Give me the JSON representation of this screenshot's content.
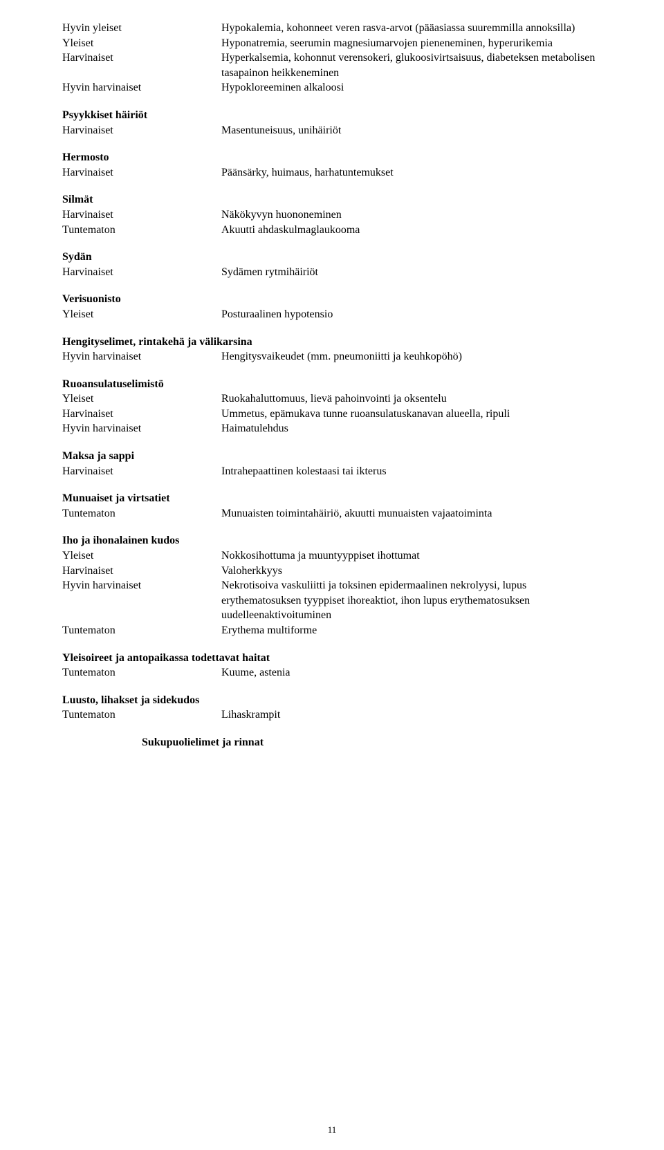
{
  "s1": {
    "r1a": "Hyvin yleiset",
    "r1b": "Hypokalemia, kohonneet veren rasva-arvot (pääasiassa suuremmilla annoksilla)",
    "r2a": "Yleiset",
    "r2b": "Hyponatremia, seerumin magnesiumarvojen pieneneminen, hyperurikemia",
    "r3a": "Harvinaiset",
    "r3b": "Hyperkalsemia, kohonnut verensokeri, glukoosivirtsaisuus, diabeteksen metabolisen tasapainon heikkeneminen",
    "r4a": "Hyvin harvinaiset",
    "r4b": "Hypokloreeminen alkaloosi"
  },
  "s2": {
    "title": "Psyykkiset häiriöt",
    "r1a": "Harvinaiset",
    "r1b": "Masentuneisuus, unihäiriöt"
  },
  "s3": {
    "title": "Hermosto",
    "r1a": "Harvinaiset",
    "r1b": "Päänsärky, huimaus, harhatuntemukset"
  },
  "s4": {
    "title": "Silmät",
    "r1a": "Harvinaiset",
    "r1b": "Näkökyvyn huononeminen",
    "r2a": "Tuntematon",
    "r2b": "Akuutti ahdaskulmaglaukooma"
  },
  "s5": {
    "title": "Sydän",
    "r1a": "Harvinaiset",
    "r1b": "Sydämen rytmihäiriöt"
  },
  "s6": {
    "title": "Verisuonisto",
    "r1a": "Yleiset",
    "r1b": "Posturaalinen hypotensio"
  },
  "s7": {
    "title": "Hengityselimet, rintakehä ja välikarsina",
    "r1a": "Hyvin harvinaiset",
    "r1b": "Hengitysvaikeudet (mm. pneumoniitti ja keuhkopöhö)"
  },
  "s8": {
    "title": "Ruoansulatuselimistö",
    "r1a": "Yleiset",
    "r1b": "Ruokahaluttomuus, lievä pahoinvointi ja oksentelu",
    "r2a": "Harvinaiset",
    "r2b": "Ummetus, epämukava tunne ruoansulatuskanavan alueella, ripuli",
    "r3a": "Hyvin harvinaiset",
    "r3b": "Haimatulehdus"
  },
  "s9": {
    "title": "Maksa ja sappi",
    "r1a": "Harvinaiset",
    "r1b": "Intrahepaattinen kolestaasi tai ikterus"
  },
  "s10": {
    "title": "Munuaiset ja virtsatiet",
    "r1a": "Tuntematon",
    "r1b": "Munuaisten toimintahäiriö, akuutti munuaisten vajaatoiminta"
  },
  "s11": {
    "title": "Iho ja ihonalainen kudos",
    "r1a": "Yleiset",
    "r1b": "Nokkosihottuma ja muuntyyppiset ihottumat",
    "r2a": "Harvinaiset",
    "r2b": "Valoherkkyys",
    "r3a": "Hyvin harvinaiset",
    "r3b": "Nekrotisoiva vaskuliitti ja toksinen epidermaalinen nekrolyysi, lupus erythematosuksen tyyppiset ihoreaktiot, ihon lupus erythematosuksen uudelleenaktivoituminen",
    "r4a": "Tuntematon",
    "r4b": "Erythema multiforme"
  },
  "s12": {
    "title": "Yleisoireet ja antopaikassa todettavat haitat",
    "r1a": "Tuntematon",
    "r1b": "Kuume, astenia"
  },
  "s13": {
    "title": "Luusto, lihakset ja sidekudos",
    "r1a": "Tuntematon",
    "r1b": "Lihaskrampit"
  },
  "s14": {
    "title": "Sukupuolielimet ja rinnat"
  },
  "pagenum": "11"
}
